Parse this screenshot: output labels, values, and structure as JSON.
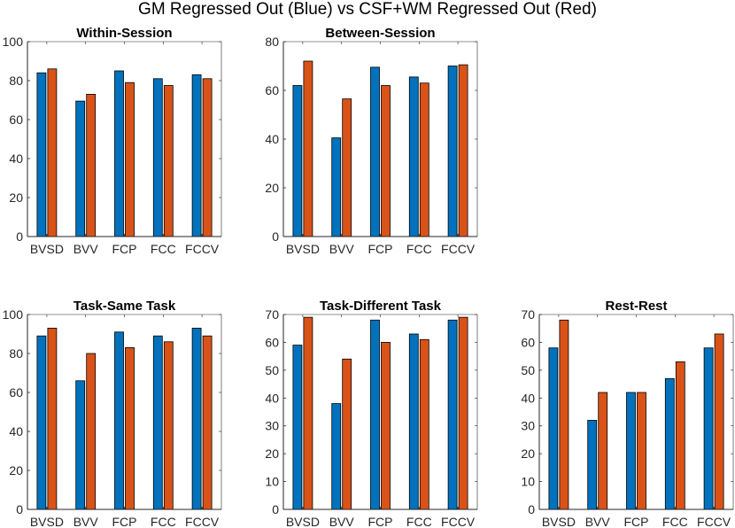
{
  "suptitle": "GM Regressed Out (Blue) vs CSF+WM Regressed Out (Red)",
  "colors": {
    "blue": "#0072BD",
    "red": "#D95319",
    "axis": "#262626",
    "grid": "#f0f0f0"
  },
  "chart_data": [
    {
      "type": "bar",
      "title": "Within-Session",
      "categories": [
        "BVSD",
        "BVV",
        "FCP",
        "FCC",
        "FCCV"
      ],
      "ylim": [
        0,
        100
      ],
      "yticks": [
        0,
        20,
        40,
        60,
        80,
        100
      ],
      "series": [
        {
          "name": "GM Regressed Out (Blue)",
          "values": [
            84,
            69.5,
            85,
            81,
            83
          ]
        },
        {
          "name": "CSF+WM Regressed Out (Red)",
          "values": [
            86,
            73,
            79,
            77.5,
            81
          ]
        }
      ]
    },
    {
      "type": "bar",
      "title": "Between-Session",
      "categories": [
        "BVSD",
        "BVV",
        "FCP",
        "FCC",
        "FCCV"
      ],
      "ylim": [
        0,
        80
      ],
      "yticks": [
        0,
        20,
        40,
        60,
        80
      ],
      "series": [
        {
          "name": "GM Regressed Out (Blue)",
          "values": [
            62,
            40.5,
            69.5,
            65.5,
            70
          ]
        },
        {
          "name": "CSF+WM Regressed Out (Red)",
          "values": [
            72,
            56.5,
            62,
            63,
            70.5
          ]
        }
      ]
    },
    {
      "type": "bar",
      "title": "Task-Same Task",
      "categories": [
        "BVSD",
        "BVV",
        "FCP",
        "FCC",
        "FCCV"
      ],
      "ylim": [
        0,
        100
      ],
      "yticks": [
        0,
        20,
        40,
        60,
        80,
        100
      ],
      "series": [
        {
          "name": "GM Regressed Out (Blue)",
          "values": [
            89,
            66,
            91,
            89,
            93
          ]
        },
        {
          "name": "CSF+WM Regressed Out (Red)",
          "values": [
            93,
            80,
            83,
            86,
            89
          ]
        }
      ]
    },
    {
      "type": "bar",
      "title": "Task-Different Task",
      "categories": [
        "BVSD",
        "BVV",
        "FCP",
        "FCC",
        "FCCV"
      ],
      "ylim": [
        0,
        70
      ],
      "yticks": [
        0,
        10,
        20,
        30,
        40,
        50,
        60,
        70
      ],
      "series": [
        {
          "name": "GM Regressed Out (Blue)",
          "values": [
            59,
            38,
            68,
            63,
            68
          ]
        },
        {
          "name": "CSF+WM Regressed Out (Red)",
          "values": [
            69,
            54,
            60,
            61,
            69
          ]
        }
      ]
    },
    {
      "type": "bar",
      "title": "Rest-Rest",
      "categories": [
        "BVSD",
        "BVV",
        "FCP",
        "FCC",
        "FCCV"
      ],
      "ylim": [
        0,
        70
      ],
      "yticks": [
        0,
        10,
        20,
        30,
        40,
        50,
        60,
        70
      ],
      "series": [
        {
          "name": "GM Regressed Out (Blue)",
          "values": [
            58,
            32,
            42,
            47,
            58
          ]
        },
        {
          "name": "CSF+WM Regressed Out (Red)",
          "values": [
            68,
            42,
            42,
            53,
            63
          ]
        }
      ]
    }
  ]
}
